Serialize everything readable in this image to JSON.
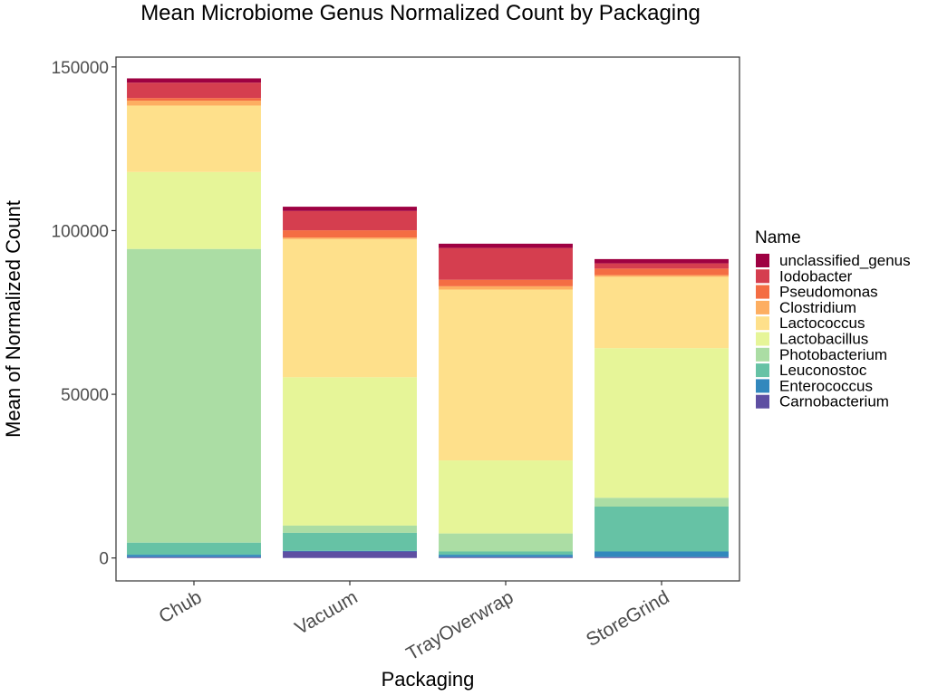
{
  "chart_data": {
    "type": "bar",
    "stacked": true,
    "title": "Mean Microbiome Genus Normalized Count by Packaging",
    "xlabel": "Packaging",
    "ylabel": "Mean of Normalized Count",
    "ylim": [
      -7000,
      153000
    ],
    "yticks": [
      0,
      50000,
      100000,
      150000
    ],
    "ytick_labels": [
      "0",
      "50000",
      "100000",
      "150000"
    ],
    "categories": [
      "Chub",
      "Vacuum",
      "TrayOverwrap",
      "StoreGrind"
    ],
    "grid": false,
    "legend": {
      "title": "Name",
      "position": "right"
    },
    "series": [
      {
        "name": "Carnobacterium",
        "color": "#5e4fa2",
        "values": [
          300,
          2000,
          300,
          300
        ]
      },
      {
        "name": "Enterococcus",
        "color": "#3288bd",
        "values": [
          700,
          200,
          700,
          1700
        ]
      },
      {
        "name": "Leuconostoc",
        "color": "#66c2a5",
        "values": [
          3700,
          5500,
          1000,
          13700
        ]
      },
      {
        "name": "Photobacterium",
        "color": "#abdda4",
        "values": [
          89700,
          2200,
          5500,
          2700
        ]
      },
      {
        "name": "Lactobacillus",
        "color": "#e6f598",
        "values": [
          23500,
          45300,
          22300,
          45700
        ]
      },
      {
        "name": "Lactococcus",
        "color": "#fee08b",
        "values": [
          20300,
          42200,
          52200,
          21800
        ]
      },
      {
        "name": "Clostridium",
        "color": "#fdae61",
        "values": [
          1500,
          500,
          1000,
          500
        ]
      },
      {
        "name": "Pseudomonas",
        "color": "#f46d43",
        "values": [
          800,
          2200,
          2000,
          2000
        ]
      },
      {
        "name": "Iodobacter",
        "color": "#d53e4f",
        "values": [
          4700,
          5900,
          9700,
          1600
        ]
      },
      {
        "name": "unclassified_genus",
        "color": "#9e0142",
        "values": [
          1300,
          1300,
          1300,
          1300
        ]
      }
    ]
  }
}
